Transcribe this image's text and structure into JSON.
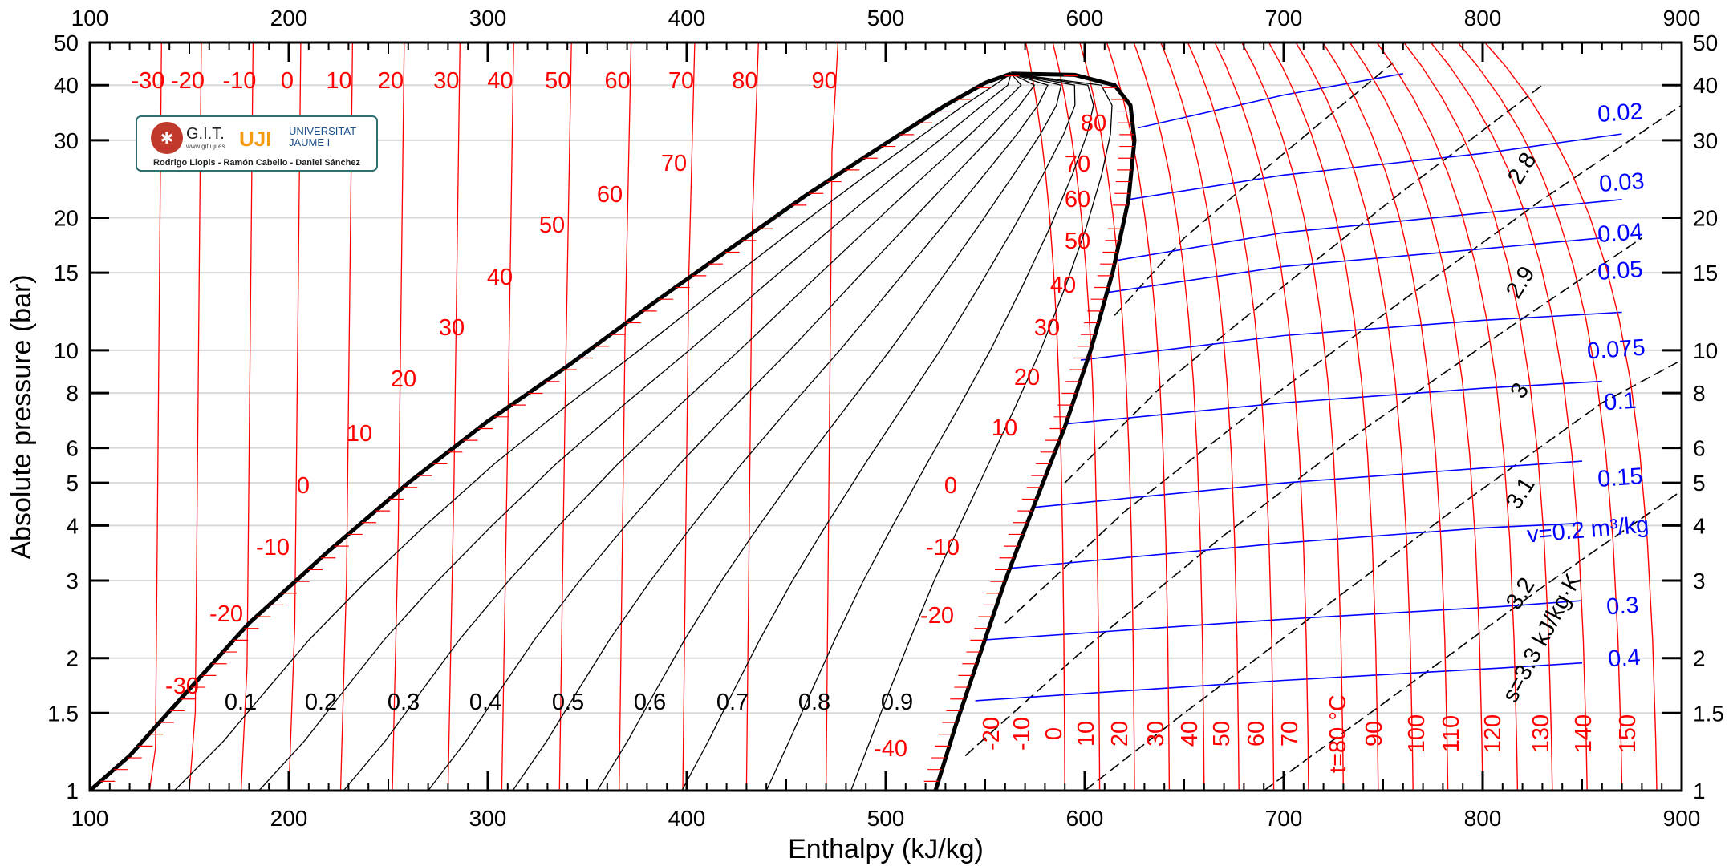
{
  "chart_data": {
    "type": "line",
    "title": "",
    "xlabel": "Enthalpy (kJ/kg)",
    "ylabel": "Absolute pressure (bar)",
    "xlim": [
      100,
      900
    ],
    "ylim": [
      1,
      50
    ],
    "yscale": "log",
    "grid": true,
    "x_ticks": [
      100,
      200,
      300,
      400,
      500,
      600,
      700,
      800,
      900
    ],
    "y_ticks": [
      1,
      1.5,
      2,
      3,
      4,
      5,
      6,
      8,
      10,
      15,
      20,
      30,
      40,
      50
    ],
    "y_tick_labels": [
      "1",
      "1.5",
      "2",
      "3",
      "4",
      "5",
      "6",
      "8",
      "10",
      "15",
      "20",
      "30",
      "40",
      "50"
    ],
    "saturation_dome": {
      "critical_point": {
        "h": 563,
        "p": 42.5
      },
      "liquid_line": [
        [
          100,
          1
        ],
        [
          120,
          1.2
        ],
        [
          150,
          1.7
        ],
        [
          180,
          2.4
        ],
        [
          220,
          3.5
        ],
        [
          260,
          5.0
        ],
        [
          300,
          6.9
        ],
        [
          340,
          9.2
        ],
        [
          380,
          12.5
        ],
        [
          420,
          16.8
        ],
        [
          460,
          22.5
        ],
        [
          500,
          29.5
        ],
        [
          530,
          36
        ],
        [
          550,
          40.5
        ],
        [
          563,
          42.5
        ]
      ],
      "vapor_line": [
        [
          525,
          1
        ],
        [
          535,
          1.4
        ],
        [
          545,
          1.9
        ],
        [
          560,
          3.0
        ],
        [
          575,
          4.5
        ],
        [
          590,
          6.7
        ],
        [
          603,
          10
        ],
        [
          614,
          15
        ],
        [
          622,
          22
        ],
        [
          625,
          30
        ],
        [
          623,
          36
        ],
        [
          615,
          40
        ],
        [
          595,
          42.2
        ],
        [
          563,
          42.5
        ]
      ]
    },
    "quality_lines": {
      "values": [
        0.1,
        0.2,
        0.3,
        0.4,
        0.5,
        0.6,
        0.7,
        0.8,
        0.9
      ],
      "labels": [
        "0.1",
        "0.2",
        "0.3",
        "0.4",
        "0.5",
        "0.6",
        "0.7",
        "0.8",
        "0.9"
      ]
    },
    "isotherms_liquid": {
      "values": [
        -30,
        -20,
        -10,
        0,
        10,
        20,
        30,
        40,
        50,
        60,
        70,
        80,
        90
      ],
      "labels": [
        "-30",
        "-20",
        "-10",
        "0",
        "10",
        "20",
        "30",
        "40",
        "50",
        "60",
        "70",
        "80",
        "90"
      ]
    },
    "saturation_temperature_labels": {
      "liquid_side": [
        "-30",
        "-20",
        "-10",
        "0",
        "10",
        "20",
        "30",
        "40",
        "50",
        "60",
        "70"
      ],
      "vapor_side": [
        "-40",
        "-20",
        "-10",
        "0",
        "10",
        "20",
        "30",
        "40",
        "50",
        "60",
        "70",
        "80"
      ]
    },
    "isotherms_vapor": {
      "values": [
        -20,
        -10,
        0,
        10,
        20,
        30,
        40,
        50,
        60,
        70,
        80,
        90,
        100,
        110,
        120,
        130,
        140,
        150
      ],
      "labels": [
        "-20",
        "-10",
        "0",
        "10",
        "20",
        "30",
        "40",
        "50",
        "60",
        "70",
        "t=80 °C",
        "90",
        "100",
        "110",
        "120",
        "130",
        "140",
        "150"
      ]
    },
    "isentropes": {
      "values": [
        2.8,
        2.9,
        3,
        3.1,
        3.2,
        3.3
      ],
      "labels": [
        "2.8",
        "2.9",
        "3",
        "3.1",
        "3.2",
        "s=3.3 kJ/kg·K"
      ]
    },
    "isochores": {
      "values": [
        0.02,
        0.03,
        0.04,
        0.05,
        0.075,
        0.1,
        0.15,
        0.2,
        0.3,
        0.4
      ],
      "labels": [
        "0.02",
        "0.03",
        "0.04",
        "0.05",
        "0.075",
        "0.1",
        "0.15",
        "v=0.2 m³/kg",
        "0.3",
        "0.4"
      ]
    },
    "colors": {
      "isotherm": "#ff0000",
      "isochore": "#0000ff",
      "isentrope": "#000000",
      "dome": "#000000",
      "grid": "#d8d8d8"
    }
  },
  "logo": {
    "org": "G.I.T.",
    "url": "www.git.uji.es",
    "univ_line1": "UNIVERSITAT",
    "univ_line2": "JAUME I",
    "authors": "Rodrigo Llopis - Ramón Cabello - Daniel Sánchez",
    "mark": "UJI"
  }
}
